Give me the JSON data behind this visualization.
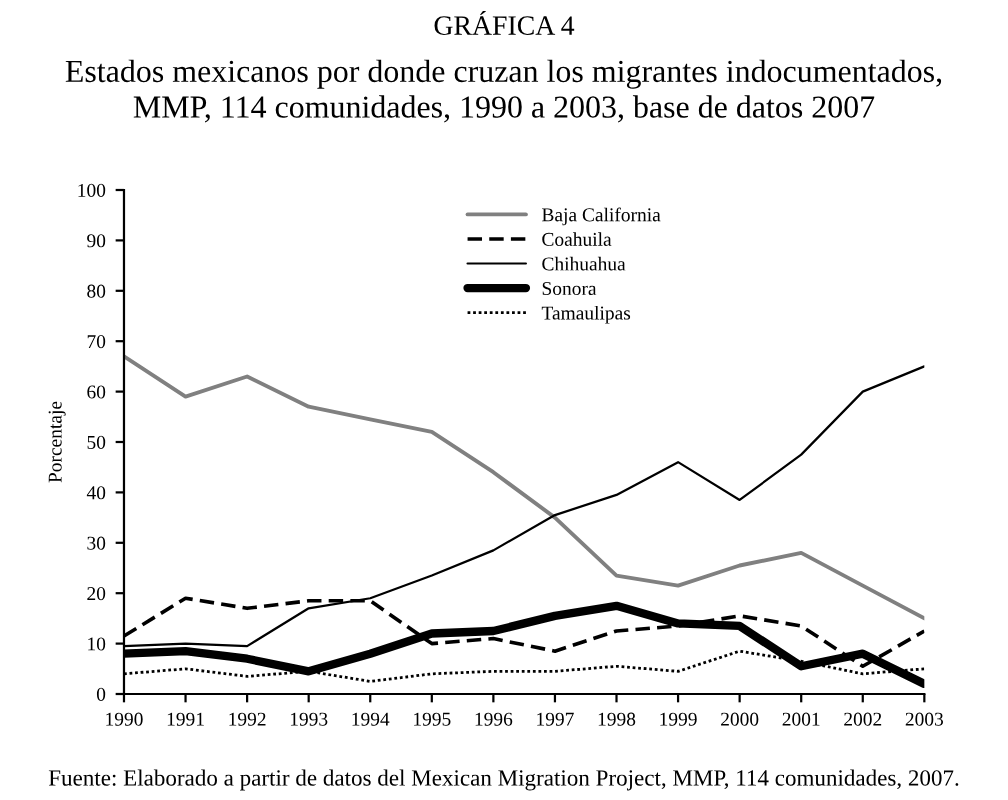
{
  "chart_data": {
    "type": "line",
    "title": "GRÁFICA 4",
    "subtitle": "Estados mexicanos por donde cruzan los migrantes indocumentados,\nMMP, 114 comunidades, 1990 a 2003, base de datos 2007",
    "ylabel": "Porcentaje",
    "annotations": [
      "Fuente: Elaborado a partir de datos del Mexican Migration Project, MMP, 114 comunidades, 2007."
    ],
    "x": [
      1990,
      1991,
      1992,
      1993,
      1994,
      1995,
      1996,
      1997,
      1998,
      1999,
      2000,
      2001,
      2002,
      2003
    ],
    "series": [
      {
        "name": "Baja California",
        "color": "#808080",
        "line_style": "solid",
        "values": [
          67,
          59,
          63,
          57,
          54.5,
          52,
          44,
          35,
          23.5,
          21.5,
          25.5,
          28,
          21.5,
          15
        ]
      },
      {
        "name": "Coahuila",
        "color": "#000000",
        "line_style": "dashed",
        "values": [
          11.5,
          19,
          17,
          18.5,
          18.5,
          10,
          11,
          8.5,
          12.5,
          13.5,
          15.5,
          13.5,
          5.5,
          12.5
        ]
      },
      {
        "name": "Chihuahua",
        "color": "#000000",
        "line_style": "solid",
        "values": [
          9.5,
          10,
          9.5,
          17,
          19,
          23.5,
          28.5,
          35.5,
          39.5,
          46,
          38.5,
          47.5,
          60,
          65
        ]
      },
      {
        "name": "Sonora",
        "color": "#000000",
        "line_style": "solid",
        "values": [
          8,
          8.5,
          7,
          4.5,
          8,
          12,
          12.5,
          15.5,
          17.5,
          14,
          13.5,
          5.5,
          8,
          2
        ]
      },
      {
        "name": "Tamaulipas",
        "color": "#000000",
        "line_style": "dotted",
        "values": [
          4,
          5,
          3.5,
          4.5,
          2.5,
          4,
          4.5,
          4.5,
          5.5,
          4.5,
          8.5,
          6.5,
          4,
          5
        ]
      }
    ],
    "xlim": [
      1990,
      2003
    ],
    "xticks": [
      1990,
      1991,
      1992,
      1993,
      1994,
      1995,
      1996,
      1997,
      1998,
      1999,
      2000,
      2001,
      2002,
      2003
    ],
    "ylim": [
      0,
      100
    ],
    "yticks": [
      0,
      10,
      20,
      30,
      40,
      50,
      60,
      70,
      80,
      90,
      100
    ],
    "legend": "top",
    "grid": false,
    "marker": "none"
  }
}
